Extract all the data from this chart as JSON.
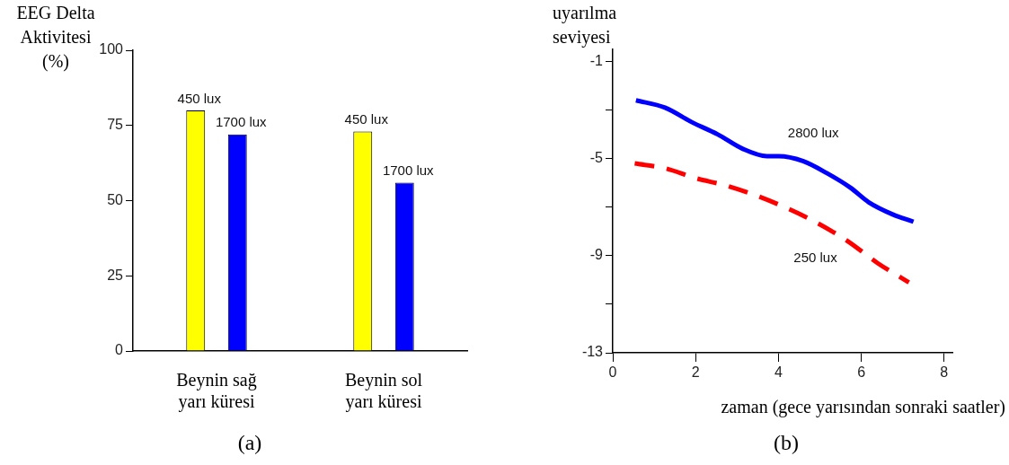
{
  "chart_data": [
    {
      "type": "bar",
      "ylabel": "EEG Delta Aktivitesi (%)",
      "categories": [
        "Beynin sağ yarı küresi",
        "Beynin sol yarı küresi"
      ],
      "series": [
        {
          "name": "450 lux",
          "color": "#ffff00",
          "values": [
            80,
            73
          ]
        },
        {
          "name": "1700 lux",
          "color": "#0000ff",
          "values": [
            72,
            56
          ]
        }
      ],
      "ylim": [
        0,
        100
      ],
      "yticks": [
        0,
        25,
        50,
        75,
        100
      ],
      "annotations": [
        "(a)"
      ]
    },
    {
      "type": "line",
      "ylabel": "uyarılma seviyesi",
      "xlabel": "zaman (gece yarısından sonraki saatler)",
      "series": [
        {
          "name": "2800 lux",
          "color": "#0000ff",
          "line_style": "solid",
          "x": [
            0.56,
            1.26,
            1.91,
            2.53,
            3.14,
            3.72,
            4.01,
            4.59,
            5.17,
            5.74,
            6.18,
            6.76,
            7.26
          ],
          "values": [
            -2.6,
            -2.9,
            -3.5,
            -4.0,
            -4.6,
            -4.9,
            -4.9,
            -5.1,
            -5.6,
            -6.2,
            -6.8,
            -7.3,
            -7.6
          ]
        },
        {
          "name": "250 lux",
          "color": "#ff0000",
          "line_style": "dashed",
          "x": [
            0.53,
            1.26,
            1.99,
            2.71,
            3.43,
            4.15,
            4.88,
            5.67,
            6.39,
            7.15
          ],
          "values": [
            -5.2,
            -5.4,
            -5.8,
            -6.1,
            -6.5,
            -7.0,
            -7.6,
            -8.4,
            -9.3,
            -10.1
          ]
        }
      ],
      "marker": "none",
      "xlim": [
        0,
        8.2
      ],
      "xticks": [
        0,
        2,
        4,
        6,
        8
      ],
      "ylim": [
        -13,
        -0.5
      ],
      "yticks": [
        -13,
        {
          "value": -11,
          "label": null
        },
        -9,
        {
          "value": -7,
          "label": null
        },
        -5,
        {
          "value": -3,
          "label": null
        },
        -1
      ],
      "annotations": [
        "(b)"
      ]
    }
  ]
}
